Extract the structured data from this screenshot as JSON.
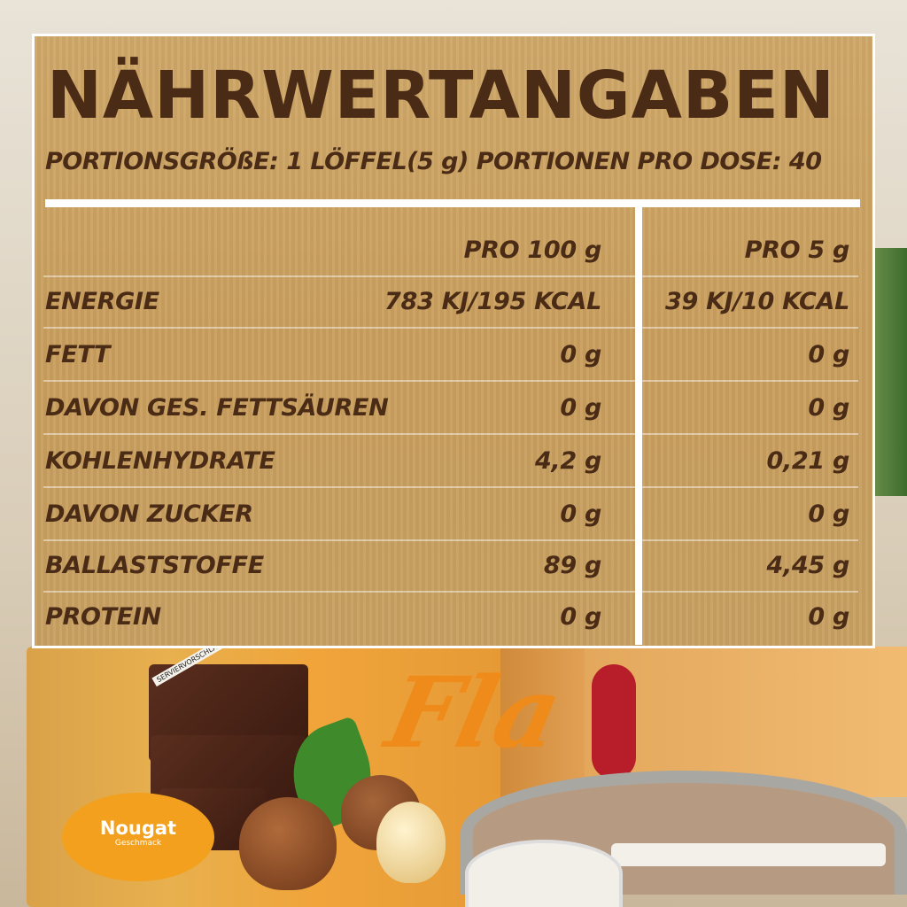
{
  "label": {
    "title": "NÄHRWERTANGABEN",
    "subtitle": "PORTIONSGRÖßE: 1 LÖFFEL(5 g) PORTIONEN PRO DOSE: 40",
    "columns": [
      "",
      "PRO 100 g",
      "PRO 5 g"
    ],
    "rows": [
      {
        "name": "ENERGIE",
        "per100": "783 KJ/195 KCAL",
        "per5": "39 KJ/10 KCAL"
      },
      {
        "name": "FETT",
        "per100": "0 g",
        "per5": "0 g"
      },
      {
        "name": "DAVON GES. FETTSÄUREN",
        "per100": "0 g",
        "per5": "0 g"
      },
      {
        "name": "KOHLENHYDRATE",
        "per100": "4,2 g",
        "per5": "0,21 g"
      },
      {
        "name": "DAVON ZUCKER",
        "per100": "0 g",
        "per5": "0 g"
      },
      {
        "name": "BALLASTSTOFFE",
        "per100": "89 g",
        "per5": "4,45 g"
      },
      {
        "name": "PROTEIN",
        "per100": "0 g",
        "per5": "0 g"
      }
    ]
  },
  "product": {
    "brand": "Fla",
    "flavor": "Nougat",
    "flavor_sub": "Geschmack",
    "serving_note": "SERVIERVORSCHLAG"
  },
  "colors": {
    "text": "#4a2b16",
    "panel": "#c9a062",
    "accent": "#ee8b1a"
  }
}
